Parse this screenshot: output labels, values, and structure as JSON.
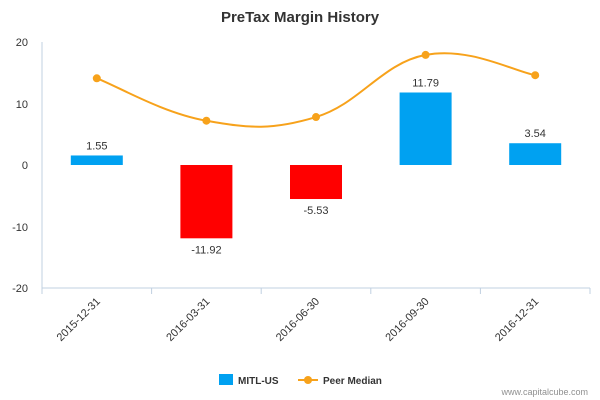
{
  "chart_data": {
    "type": "bar",
    "title": "PreTax Margin History",
    "categories": [
      "2015-12-31",
      "2016-03-31",
      "2016-06-30",
      "2016-09-30",
      "2016-12-31"
    ],
    "series": [
      {
        "name": "MITL-US",
        "type": "bar",
        "values": [
          1.55,
          -11.92,
          -5.53,
          11.79,
          3.54
        ],
        "labels": [
          "1.55",
          "-11.92",
          "-5.53",
          "11.79",
          "3.54"
        ],
        "colors": [
          "#00a1f1",
          "#ff0000",
          "#ff0000",
          "#00a1f1",
          "#00a1f1"
        ]
      },
      {
        "name": "Peer Median",
        "type": "line",
        "values": [
          14.1,
          7.2,
          7.8,
          17.9,
          14.6
        ],
        "color": "#f7a21b"
      }
    ],
    "ylim": [
      -20,
      20
    ],
    "yticks": [
      "20",
      "10",
      "0",
      "-10",
      "-20"
    ],
    "legend": "bottom-center",
    "grid": false
  },
  "credit": "www.capitalcube.com"
}
